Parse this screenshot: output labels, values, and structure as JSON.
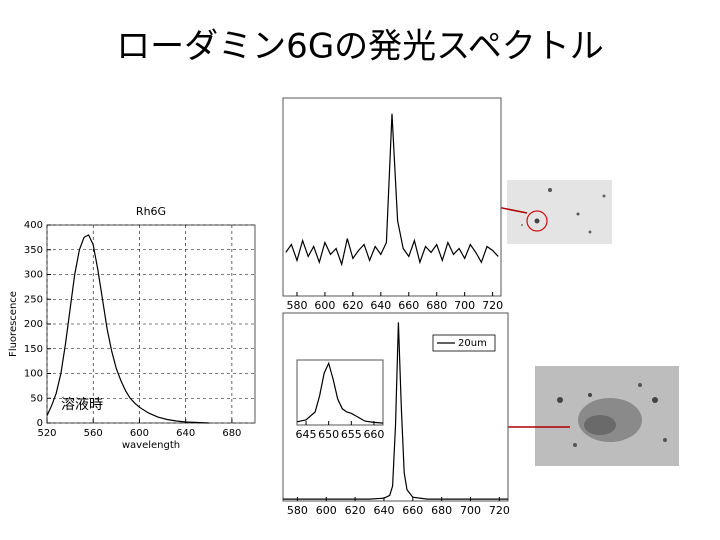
{
  "title": "ローダミン6Gの発光スペクトル",
  "chart_data": [
    {
      "type": "line",
      "title": "Rh6G",
      "xlabel": "wavelength",
      "ylabel": "Fluorescence",
      "annotation": "溶液時",
      "grid": true,
      "xlim": [
        520,
        700
      ],
      "xticks": [
        520,
        560,
        600,
        640,
        680
      ],
      "ylim": [
        0,
        400
      ],
      "yticks": [
        0,
        50,
        100,
        150,
        200,
        250,
        300,
        350,
        400
      ],
      "x": [
        520,
        524,
        528,
        532,
        536,
        540,
        544,
        548,
        552,
        556,
        560,
        564,
        568,
        572,
        576,
        580,
        584,
        588,
        592,
        596,
        600,
        608,
        616,
        624,
        632,
        640,
        650,
        660
      ],
      "series": [
        {
          "color": "#000000",
          "values": [
            15,
            35,
            60,
            100,
            160,
            230,
            300,
            350,
            375,
            380,
            360,
            310,
            250,
            190,
            145,
            110,
            85,
            65,
            50,
            40,
            32,
            20,
            12,
            7,
            4,
            2,
            1,
            0
          ]
        }
      ]
    },
    {
      "type": "line",
      "grid": false,
      "xlim": [
        570,
        726
      ],
      "xticks": [
        580,
        600,
        620,
        640,
        660,
        680,
        700,
        720
      ],
      "ylim": [
        0,
        100
      ],
      "x": [
        572,
        576,
        580,
        584,
        588,
        592,
        596,
        600,
        604,
        608,
        612,
        616,
        620,
        624,
        628,
        632,
        636,
        640,
        644,
        648,
        652,
        656,
        660,
        664,
        668,
        672,
        676,
        680,
        684,
        688,
        692,
        696,
        700,
        704,
        708,
        712,
        716,
        720,
        724
      ],
      "series": [
        {
          "color": "#000000",
          "values": [
            22,
            26,
            18,
            28,
            20,
            25,
            17,
            27,
            21,
            24,
            16,
            29,
            19,
            23,
            26,
            18,
            25,
            21,
            27,
            92,
            38,
            24,
            20,
            28,
            17,
            25,
            22,
            26,
            18,
            27,
            21,
            24,
            19,
            26,
            22,
            17,
            25,
            23,
            20
          ]
        }
      ]
    },
    {
      "type": "line",
      "grid": false,
      "legend": "top-right",
      "xlim": [
        570,
        726
      ],
      "xticks": [
        580,
        600,
        620,
        640,
        660,
        680,
        700,
        720
      ],
      "ylim": [
        0,
        100
      ],
      "x": [
        570,
        600,
        620,
        630,
        640,
        644,
        646,
        648,
        650,
        652,
        654,
        656,
        660,
        670,
        700,
        726
      ],
      "series": [
        {
          "name": "20um",
          "color": "#000000",
          "values": [
            1,
            1,
            1,
            1,
            1.5,
            3,
            8,
            40,
            95,
            50,
            15,
            6,
            2,
            1,
            1,
            1
          ]
        }
      ]
    },
    {
      "type": "line",
      "grid": false,
      "xlim": [
        643,
        662
      ],
      "xticks": [
        645,
        650,
        655,
        660
      ],
      "ylim": [
        0,
        100
      ],
      "x": [
        643,
        645,
        647,
        648,
        649,
        650,
        651,
        652,
        653,
        654,
        655,
        656,
        657,
        658,
        660,
        662
      ],
      "series": [
        {
          "color": "#000000",
          "values": [
            5,
            8,
            20,
            45,
            80,
            95,
            70,
            40,
            25,
            20,
            18,
            14,
            10,
            6,
            4,
            3
          ]
        }
      ]
    }
  ]
}
